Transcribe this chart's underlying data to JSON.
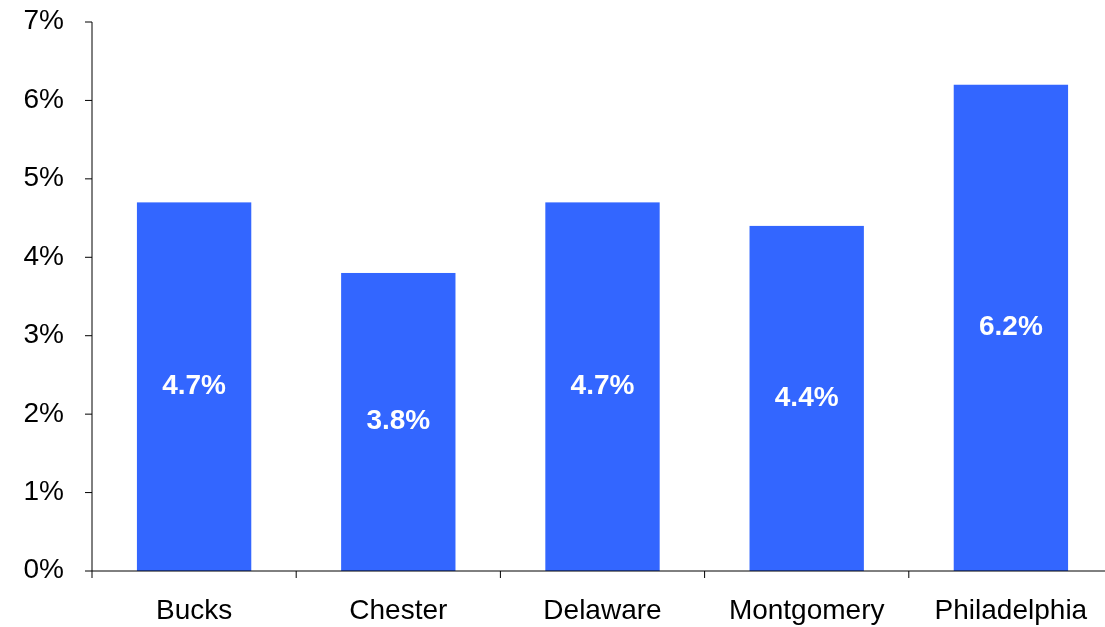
{
  "chart_data": {
    "type": "bar",
    "categories": [
      "Bucks",
      "Chester",
      "Delaware",
      "Montgomery",
      "Philadelphia"
    ],
    "values": [
      4.7,
      3.8,
      4.7,
      4.4,
      6.2
    ],
    "value_labels": [
      "4.7%",
      "3.8%",
      "4.7%",
      "4.4%",
      "6.2%"
    ],
    "color": "#3366ff",
    "ylim": [
      0,
      7
    ],
    "yticks": [
      {
        "value": 0,
        "label": "0%"
      },
      {
        "value": 1,
        "label": "1%"
      },
      {
        "value": 2,
        "label": "2%"
      },
      {
        "value": 3,
        "label": "3%"
      },
      {
        "value": 4,
        "label": "4%"
      },
      {
        "value": 5,
        "label": "5%"
      },
      {
        "value": 6,
        "label": "6%"
      },
      {
        "value": 7,
        "label": "7%"
      }
    ],
    "grid": false
  }
}
